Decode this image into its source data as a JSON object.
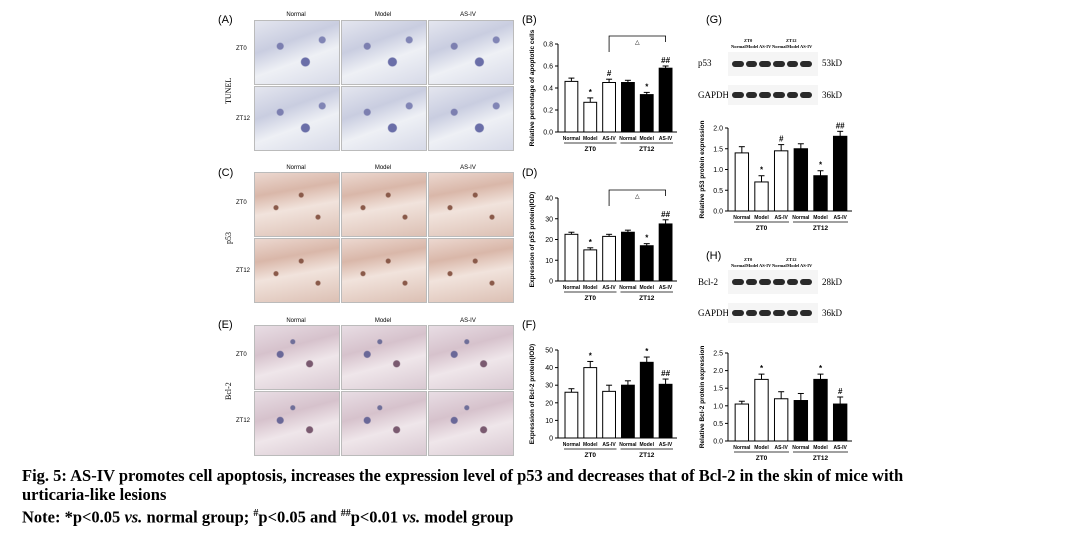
{
  "panels": {
    "A": {
      "label": "(A)",
      "cols": [
        "Normal",
        "Model",
        "AS-IV"
      ],
      "rows": [
        "ZT0",
        "ZT12"
      ],
      "side": "TUNEL"
    },
    "C": {
      "label": "(C)",
      "cols": [
        "Normal",
        "Model",
        "AS-IV"
      ],
      "rows": [
        "ZT0",
        "ZT12"
      ],
      "side": "p53"
    },
    "E": {
      "label": "(E)",
      "cols": [
        "Normal",
        "Model",
        "AS-IV"
      ],
      "rows": [
        "ZT0",
        "ZT12"
      ],
      "side": "Bcl-2"
    },
    "B": {
      "label": "(B)",
      "ylabel": "Relative percentage of apoptotic cells"
    },
    "D": {
      "label": "(D)",
      "ylabel": "Expression of p53 protein(IOD)"
    },
    "F": {
      "label": "(F)",
      "ylabel": "Expression of Bcl-2 protein(IOD)"
    },
    "G": {
      "label": "(G)",
      "protein": "p53",
      "protein_kd": "53kD",
      "ref": "GAPDH",
      "ref_kd": "36kD",
      "ylabel": "Relative p53 protein expression"
    },
    "H": {
      "label": "(H)",
      "protein": "Bcl-2",
      "protein_kd": "28kD",
      "ref": "GAPDH",
      "ref_kd": "36kD",
      "ylabel": "Relative Bcl-2 protein expression"
    }
  },
  "blot_lane_headers": {
    "zt0": "ZT0",
    "zt12": "ZT12",
    "lanes": [
      "Normal",
      "Model",
      "AS-IV",
      "Normal",
      "Model",
      "AS-IV"
    ]
  },
  "chart_data": [
    {
      "id": "B",
      "type": "bar",
      "categories": [
        "Normal",
        "Model",
        "AS-IV",
        "Normal",
        "Model",
        "AS-IV"
      ],
      "groups": [
        "ZT0",
        "ZT12"
      ],
      "values": [
        0.46,
        0.27,
        0.45,
        0.45,
        0.34,
        0.58
      ],
      "errors": [
        0.03,
        0.04,
        0.03,
        0.02,
        0.02,
        0.02
      ],
      "ylim": [
        0,
        0.8
      ],
      "yticks": [
        "0.0",
        "0.2",
        "0.4",
        "0.6",
        "0.8"
      ],
      "marks": [
        "",
        "*",
        "#",
        "",
        "*",
        "##"
      ],
      "bracket": {
        "from": 2,
        "to": 5,
        "symbol": "△"
      }
    },
    {
      "id": "D",
      "type": "bar",
      "categories": [
        "Normal",
        "Model",
        "AS-IV",
        "Normal",
        "Model",
        "AS-IV"
      ],
      "groups": [
        "ZT0",
        "ZT12"
      ],
      "values": [
        22.5,
        15,
        21.5,
        23.5,
        17,
        27.5
      ],
      "errors": [
        1,
        1,
        1,
        1,
        1,
        2
      ],
      "ylim": [
        0,
        40
      ],
      "yticks": [
        "0",
        "10",
        "20",
        "30",
        "40"
      ],
      "marks": [
        "",
        "*",
        "",
        "",
        "*",
        "##"
      ],
      "bracket": {
        "from": 2,
        "to": 5,
        "symbol": "△"
      }
    },
    {
      "id": "F",
      "type": "bar",
      "categories": [
        "Normal",
        "Model",
        "AS-IV",
        "Normal",
        "Model",
        "AS-IV"
      ],
      "groups": [
        "ZT0",
        "ZT12"
      ],
      "values": [
        26,
        40,
        26.5,
        30,
        43,
        30.5
      ],
      "errors": [
        2,
        3.5,
        3.5,
        2.5,
        3,
        3
      ],
      "ylim": [
        0,
        50
      ],
      "yticks": [
        "0",
        "10",
        "20",
        "30",
        "40",
        "50"
      ],
      "marks": [
        "",
        "*",
        "",
        "",
        "*",
        "##"
      ]
    },
    {
      "id": "G",
      "type": "bar",
      "categories": [
        "Normal",
        "Model",
        "AS-IV",
        "Normal",
        "Model",
        "AS-IV"
      ],
      "groups": [
        "ZT0",
        "ZT12"
      ],
      "values": [
        1.4,
        0.7,
        1.45,
        1.5,
        0.85,
        1.8
      ],
      "errors": [
        0.15,
        0.15,
        0.15,
        0.12,
        0.12,
        0.12
      ],
      "ylim": [
        0,
        2.0
      ],
      "yticks": [
        "0.0",
        "0.5",
        "1.0",
        "1.5",
        "2.0"
      ],
      "marks": [
        "",
        "*",
        "#",
        "",
        "*",
        "##"
      ]
    },
    {
      "id": "H",
      "type": "bar",
      "categories": [
        "Normal",
        "Model",
        "AS-IV",
        "Normal",
        "Model",
        "AS-IV"
      ],
      "groups": [
        "ZT0",
        "ZT12"
      ],
      "values": [
        1.05,
        1.75,
        1.2,
        1.15,
        1.75,
        1.05
      ],
      "errors": [
        0.08,
        0.15,
        0.2,
        0.2,
        0.15,
        0.2
      ],
      "ylim": [
        0,
        2.5
      ],
      "yticks": [
        "0.0",
        "0.5",
        "1.0",
        "1.5",
        "2.0",
        "2.5"
      ],
      "marks": [
        "",
        "*",
        "",
        "",
        "*",
        "#"
      ]
    }
  ],
  "caption": {
    "line1": "Fig. 5: AS-IV promotes cell apoptosis, increases the expression level of p53 and decreases that of Bcl-2 in the skin of mice with",
    "line2": "urticaria-like lesions",
    "line3_prefix": "Note: *p<0.05 ",
    "vs1": "vs.",
    "line3_mid1": " normal group; ",
    "hash1": "#",
    "line3_mid2": "p<0.05 and ",
    "hash2": "##",
    "line3_mid3": "p<0.01 ",
    "vs2": "vs.",
    "line3_end": " model group"
  }
}
